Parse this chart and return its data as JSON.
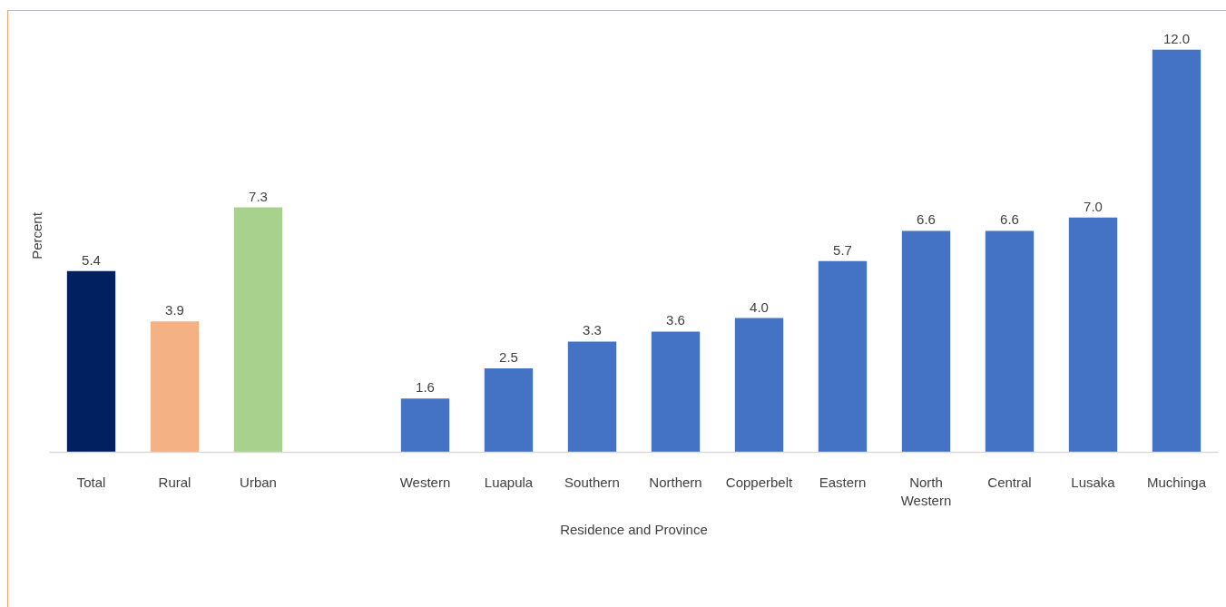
{
  "chart_data": {
    "type": "bar",
    "xlabel": "Residence and Province",
    "ylabel": "Percent",
    "categories": [
      "Total",
      "Rural",
      "Urban",
      null,
      "Western",
      "Luapula",
      "Southern",
      "Northern",
      "Copperbelt",
      "Eastern",
      "North Western",
      "Central",
      "Lusaka",
      "Muchinga"
    ],
    "values": [
      5.4,
      3.9,
      7.3,
      null,
      1.6,
      2.5,
      3.3,
      3.6,
      4.0,
      5.7,
      6.6,
      6.6,
      7.0,
      12.0
    ],
    "value_labels": [
      "5.4",
      "3.9",
      "7.3",
      null,
      "1.6",
      "2.5",
      "3.3",
      "3.6",
      "4.0",
      "5.7",
      "6.6",
      "6.6",
      "7.0",
      "12.0"
    ],
    "colors": [
      "#002060",
      "#f4b183",
      "#a9d18e",
      null,
      "#4472c4",
      "#4472c4",
      "#4472c4",
      "#4472c4",
      "#4472c4",
      "#4472c4",
      "#4472c4",
      "#4472c4",
      "#4472c4",
      "#4472c4"
    ],
    "grid": false
  }
}
